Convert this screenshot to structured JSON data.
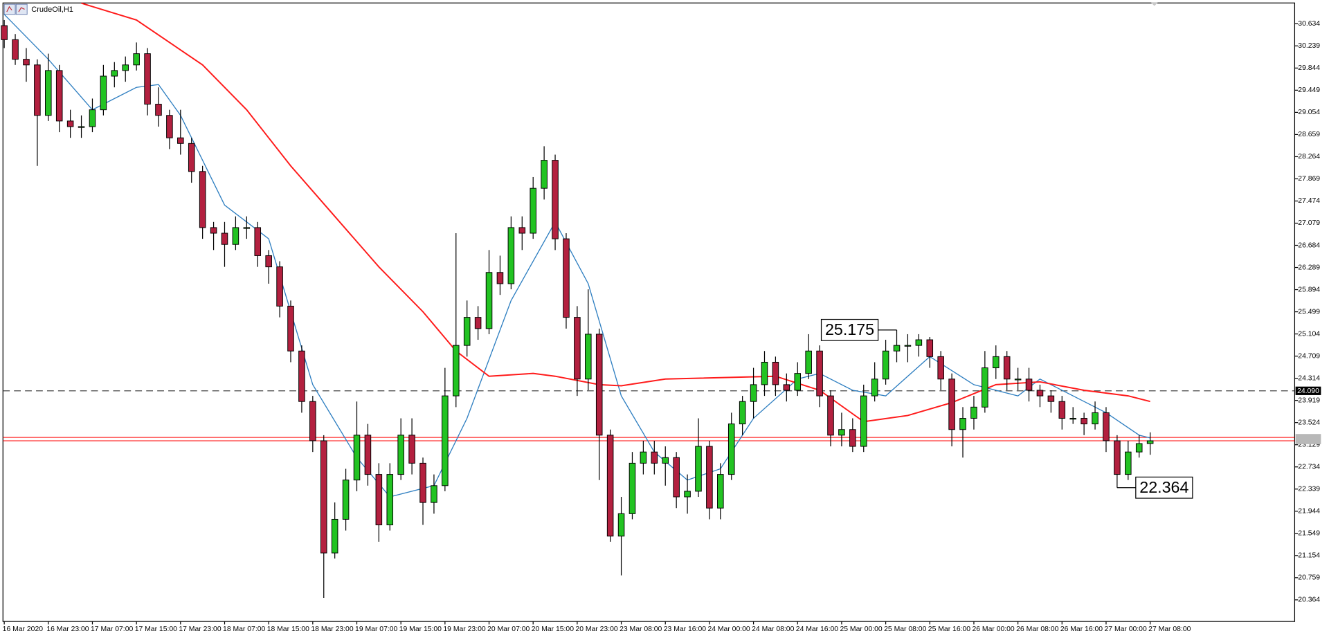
{
  "chart_data": {
    "type": "candlestick",
    "title": "CrudeOil,H1",
    "categories": [
      "16 Mar 2020",
      "16 Mar 23:00",
      "17 Mar 07:00",
      "17 Mar 15:00",
      "17 Mar 23:00",
      "18 Mar 07:00",
      "18 Mar 15:00",
      "18 Mar 23:00",
      "19 Mar 07:00",
      "19 Mar 15:00",
      "19 Mar 23:00",
      "20 Mar 07:00",
      "20 Mar 15:00",
      "20 Mar 23:00",
      "23 Mar 08:00",
      "23 Mar 16:00",
      "24 Mar 00:00",
      "24 Mar 08:00",
      "24 Mar 16:00",
      "25 Mar 00:00",
      "25 Mar 08:00",
      "25 Mar 16:00",
      "26 Mar 00:00",
      "26 Mar 08:00",
      "26 Mar 16:00",
      "27 Mar 00:00",
      "27 Mar 08:00"
    ],
    "candles": [
      [
        30.6,
        30.7,
        30.2,
        30.35
      ],
      [
        30.35,
        30.45,
        29.9,
        30.0
      ],
      [
        30.0,
        30.2,
        29.6,
        29.9
      ],
      [
        29.9,
        30.0,
        28.1,
        29.0
      ],
      [
        29.0,
        30.1,
        28.9,
        29.8
      ],
      [
        29.8,
        29.9,
        28.7,
        28.9
      ],
      [
        28.9,
        29.1,
        28.6,
        28.8
      ],
      [
        28.8,
        29.0,
        28.6,
        28.8
      ],
      [
        28.8,
        29.3,
        28.7,
        29.1
      ],
      [
        29.1,
        29.9,
        29.0,
        29.7
      ],
      [
        29.7,
        29.95,
        29.5,
        29.8
      ],
      [
        29.8,
        30.05,
        29.6,
        29.9
      ],
      [
        29.9,
        30.3,
        29.8,
        30.1
      ],
      [
        30.1,
        30.2,
        29.0,
        29.2
      ],
      [
        29.2,
        29.5,
        28.8,
        29.0
      ],
      [
        29.0,
        29.1,
        28.4,
        28.6
      ],
      [
        28.6,
        29.1,
        28.3,
        28.5
      ],
      [
        28.5,
        28.6,
        27.8,
        28.0
      ],
      [
        28.0,
        28.1,
        26.8,
        27.0
      ],
      [
        27.0,
        27.1,
        26.6,
        26.9
      ],
      [
        26.9,
        27.1,
        26.3,
        26.7
      ],
      [
        26.7,
        27.2,
        26.6,
        27.0
      ],
      [
        27.0,
        27.2,
        26.8,
        27.0
      ],
      [
        27.0,
        27.1,
        26.3,
        26.5
      ],
      [
        26.5,
        26.6,
        26.0,
        26.3
      ],
      [
        26.3,
        26.4,
        25.4,
        25.6
      ],
      [
        25.6,
        25.7,
        24.6,
        24.8
      ],
      [
        24.8,
        24.9,
        23.7,
        23.9
      ],
      [
        23.9,
        24.0,
        23.0,
        23.2
      ],
      [
        23.2,
        23.3,
        20.4,
        21.2
      ],
      [
        21.2,
        22.1,
        21.1,
        21.8
      ],
      [
        21.8,
        22.7,
        21.6,
        22.5
      ],
      [
        22.5,
        23.9,
        22.3,
        23.3
      ],
      [
        23.3,
        23.5,
        22.4,
        22.6
      ],
      [
        22.6,
        22.8,
        21.4,
        21.7
      ],
      [
        21.7,
        22.8,
        21.6,
        22.6
      ],
      [
        22.6,
        23.6,
        22.5,
        23.3
      ],
      [
        23.3,
        23.6,
        22.6,
        22.8
      ],
      [
        22.8,
        22.9,
        21.7,
        22.1
      ],
      [
        22.1,
        22.6,
        21.9,
        22.4
      ],
      [
        22.4,
        24.5,
        22.3,
        24.0
      ],
      [
        24.0,
        26.9,
        23.8,
        24.9
      ],
      [
        24.9,
        25.7,
        24.7,
        25.4
      ],
      [
        25.4,
        25.6,
        25.0,
        25.2
      ],
      [
        25.2,
        26.6,
        25.1,
        26.2
      ],
      [
        26.2,
        26.5,
        25.8,
        26.0
      ],
      [
        26.0,
        27.2,
        25.9,
        27.0
      ],
      [
        27.0,
        27.2,
        26.6,
        26.9
      ],
      [
        26.9,
        27.9,
        26.8,
        27.7
      ],
      [
        27.7,
        28.45,
        27.5,
        28.2
      ],
      [
        28.2,
        28.3,
        26.6,
        26.8
      ],
      [
        26.8,
        26.9,
        25.2,
        25.4
      ],
      [
        25.4,
        25.6,
        24.0,
        24.3
      ],
      [
        24.3,
        25.9,
        24.1,
        25.1
      ],
      [
        25.1,
        25.2,
        22.5,
        23.3
      ],
      [
        23.3,
        23.4,
        21.4,
        21.5
      ],
      [
        21.5,
        22.2,
        20.8,
        21.9
      ],
      [
        21.9,
        23.0,
        21.8,
        22.8
      ],
      [
        22.8,
        23.2,
        22.6,
        23.0
      ],
      [
        23.0,
        23.2,
        22.6,
        22.8
      ],
      [
        22.8,
        23.1,
        22.4,
        22.9
      ],
      [
        22.9,
        23.0,
        22.0,
        22.2
      ],
      [
        22.2,
        22.6,
        21.9,
        22.3
      ],
      [
        22.3,
        23.6,
        22.2,
        23.1
      ],
      [
        23.1,
        23.2,
        21.8,
        22.0
      ],
      [
        22.0,
        22.8,
        21.8,
        22.6
      ],
      [
        22.6,
        23.7,
        22.5,
        23.5
      ],
      [
        23.5,
        24.0,
        23.3,
        23.9
      ],
      [
        23.9,
        24.5,
        23.6,
        24.2
      ],
      [
        24.2,
        24.8,
        24.0,
        24.6
      ],
      [
        24.6,
        24.7,
        24.0,
        24.2
      ],
      [
        24.2,
        24.4,
        23.9,
        24.1
      ],
      [
        24.1,
        24.6,
        24.0,
        24.4
      ],
      [
        24.4,
        25.1,
        24.3,
        24.8
      ],
      [
        24.8,
        24.9,
        23.8,
        24.0
      ],
      [
        24.0,
        24.1,
        23.1,
        23.3
      ],
      [
        23.3,
        23.7,
        23.1,
        23.4
      ],
      [
        23.4,
        23.6,
        23.0,
        23.1
      ],
      [
        23.1,
        24.2,
        23.0,
        24.0
      ],
      [
        24.0,
        24.6,
        23.9,
        24.3
      ],
      [
        24.3,
        25.0,
        24.2,
        24.8
      ],
      [
        24.8,
        25.175,
        24.6,
        24.9
      ],
      [
        24.9,
        25.1,
        24.6,
        24.9
      ],
      [
        24.9,
        25.1,
        24.7,
        25.0
      ],
      [
        25.0,
        25.05,
        24.5,
        24.7
      ],
      [
        24.7,
        24.8,
        24.1,
        24.3
      ],
      [
        24.3,
        24.4,
        23.1,
        23.4
      ],
      [
        23.4,
        23.8,
        22.9,
        23.6
      ],
      [
        23.6,
        24.0,
        23.4,
        23.8
      ],
      [
        23.8,
        24.8,
        23.7,
        24.5
      ],
      [
        24.5,
        24.9,
        24.3,
        24.7
      ],
      [
        24.7,
        24.8,
        24.1,
        24.3
      ],
      [
        24.3,
        24.5,
        24.1,
        24.3
      ],
      [
        24.3,
        24.5,
        23.9,
        24.1
      ],
      [
        24.1,
        24.2,
        23.8,
        24.0
      ],
      [
        24.0,
        24.1,
        23.7,
        23.9
      ],
      [
        23.9,
        24.0,
        23.4,
        23.6
      ],
      [
        23.6,
        23.8,
        23.5,
        23.6
      ],
      [
        23.6,
        23.7,
        23.3,
        23.5
      ],
      [
        23.5,
        23.9,
        23.4,
        23.7
      ],
      [
        23.7,
        23.8,
        23.0,
        23.2
      ],
      [
        23.2,
        23.3,
        22.364,
        22.6
      ],
      [
        22.6,
        23.2,
        22.5,
        23.0
      ],
      [
        23.0,
        23.3,
        22.9,
        23.15
      ],
      [
        23.15,
        23.35,
        22.95,
        23.2
      ]
    ],
    "bull_color": "#22c322",
    "bear_color": "#b3203f",
    "ylim": [
      19.986,
      31.057
    ],
    "yticks": [
      30.634,
      30.239,
      29.844,
      29.449,
      29.054,
      28.659,
      28.264,
      27.869,
      27.474,
      27.079,
      26.684,
      26.289,
      25.894,
      25.499,
      25.104,
      24.709,
      24.314,
      23.919,
      23.524,
      23.129,
      22.734,
      22.339,
      21.944,
      21.549,
      21.154,
      20.759,
      20.364
    ],
    "lines": [
      {
        "color": "#2f7fc1",
        "x": [
          0,
          4,
          8,
          12,
          14,
          16,
          20,
          24,
          28,
          32,
          35,
          39,
          42,
          46,
          50,
          53,
          56,
          59,
          62,
          65,
          68,
          72,
          74,
          77,
          80,
          84,
          88,
          92,
          94,
          98,
          100,
          103,
          104
        ],
        "values": [
          30.8,
          30.0,
          29.1,
          29.5,
          29.55,
          29.0,
          27.4,
          26.8,
          24.2,
          22.9,
          22.2,
          22.4,
          23.6,
          25.7,
          27.1,
          26.0,
          24.0,
          23.0,
          22.5,
          22.7,
          23.6,
          24.3,
          24.4,
          24.1,
          24.0,
          24.7,
          24.2,
          24.0,
          24.3,
          23.9,
          23.7,
          23.3,
          23.25
        ]
      },
      {
        "color": "#ff1a1a",
        "x": [
          7,
          12,
          18,
          22,
          26,
          30,
          34,
          38,
          41,
          44,
          48,
          50,
          54,
          56,
          60,
          70,
          74,
          78,
          82,
          86,
          90,
          94,
          98,
          102,
          104
        ],
        "values": [
          31.0,
          30.7,
          29.9,
          29.1,
          28.1,
          27.2,
          26.3,
          25.5,
          24.8,
          24.35,
          24.4,
          24.35,
          24.2,
          24.18,
          24.3,
          24.35,
          24.1,
          23.54,
          23.65,
          23.88,
          24.2,
          24.25,
          24.1,
          24.0,
          23.9
        ]
      }
    ],
    "level": {
      "value": 24.09,
      "label": "24.090"
    },
    "price_lines": [
      23.2,
      23.26
    ],
    "price_line_color": "#ff0000"
  }
}
